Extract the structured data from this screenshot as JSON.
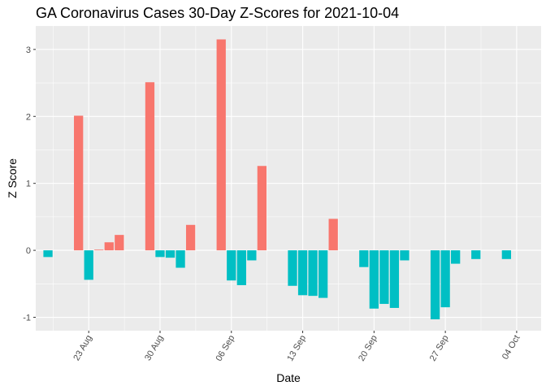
{
  "chart_data": {
    "type": "bar",
    "title": "GA Coronavirus Cases 30-Day Z-Scores for 2021-10-04",
    "xlabel": "Date",
    "ylabel": "Z Score",
    "ylim": [
      -1.2,
      3.35
    ],
    "y_ticks": [
      -1,
      0,
      1,
      2,
      3
    ],
    "x_tick_labels": [
      "23 Aug",
      "30 Aug",
      "06 Sep",
      "13 Sep",
      "20 Sep",
      "27 Sep",
      "04 Oct"
    ],
    "x_tick_day_index": [
      4,
      11,
      18,
      25,
      32,
      39,
      46
    ],
    "day_range": [
      -1.2,
      48.4
    ],
    "colors": {
      "positive": "#F8766D",
      "negative": "#00BFC4",
      "panel_bg": "#EBEBEB",
      "grid": "#FFFFFF"
    },
    "series": [
      {
        "name": "Z Score",
        "day_index": [
          0,
          3,
          4,
          5,
          6,
          7,
          10,
          11,
          12,
          13,
          14,
          17,
          18,
          19,
          20,
          21,
          24,
          25,
          26,
          27,
          28,
          31,
          32,
          33,
          34,
          35,
          38,
          39,
          40,
          42,
          45
        ],
        "values": [
          -0.1,
          2.01,
          -0.44,
          0.01,
          0.12,
          0.23,
          2.51,
          -0.1,
          -0.11,
          -0.26,
          0.38,
          3.15,
          -0.45,
          -0.52,
          -0.15,
          1.26,
          -0.53,
          -0.67,
          -0.68,
          -0.71,
          0.47,
          -0.25,
          -0.87,
          -0.8,
          -0.86,
          -0.15,
          -1.03,
          -0.85,
          -0.2,
          -0.13,
          -0.13
        ]
      }
    ]
  }
}
